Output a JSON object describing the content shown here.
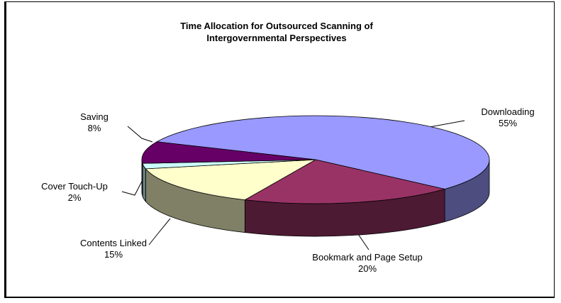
{
  "chart_data": {
    "type": "pie3d",
    "title": "Time Allocation for Outsourced Scanning of Intergovernmental Perspectives",
    "categories": [
      "Downloading",
      "Bookmark and Page Setup",
      "Contents Linked",
      "Cover Touch-Up",
      "Saving"
    ],
    "values": [
      55,
      20,
      15,
      2,
      8
    ],
    "value_labels": [
      "55%",
      "20%",
      "15%",
      "2%",
      "8%"
    ],
    "colors": [
      "#9999ff",
      "#993366",
      "#ffffcc",
      "#ccffff",
      "#660066"
    ]
  }
}
